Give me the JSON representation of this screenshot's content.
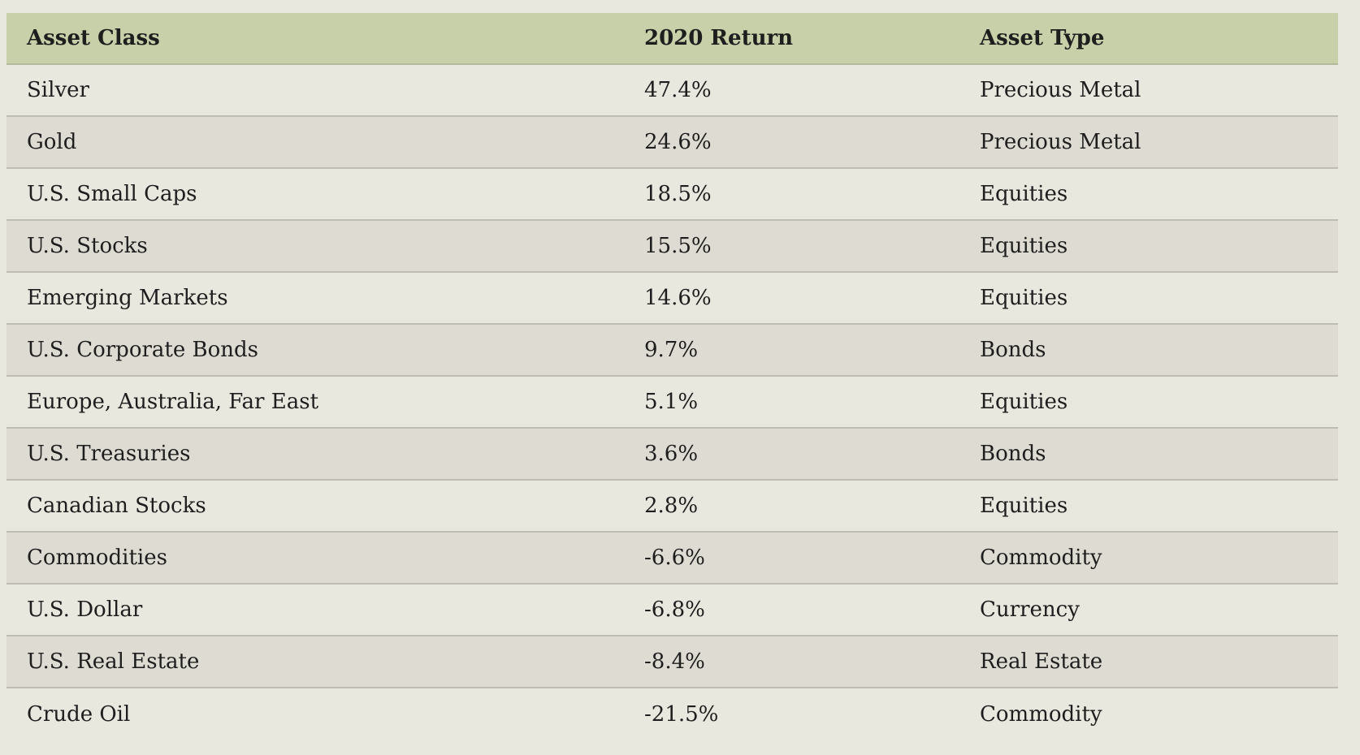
{
  "table": {
    "header": [
      "Asset Class",
      "2020 Return",
      "Asset Type"
    ],
    "rows": [
      [
        "Silver",
        "47.4%",
        "Precious Metal"
      ],
      [
        "Gold",
        "24.6%",
        "Precious Metal"
      ],
      [
        "U.S. Small Caps",
        "18.5%",
        "Equities"
      ],
      [
        "U.S. Stocks",
        "15.5%",
        "Equities"
      ],
      [
        "Emerging Markets",
        "14.6%",
        "Equities"
      ],
      [
        "U.S. Corporate Bonds",
        "9.7%",
        "Bonds"
      ],
      [
        "Europe, Australia, Far East",
        "5.1%",
        "Equities"
      ],
      [
        "U.S. Treasuries",
        "3.6%",
        "Bonds"
      ],
      [
        "Canadian Stocks",
        "2.8%",
        "Equities"
      ],
      [
        "Commodities",
        "-6.6%",
        "Commodity"
      ],
      [
        "U.S. Dollar",
        "-6.8%",
        "Currency"
      ],
      [
        "U.S. Real Estate",
        "-8.4%",
        "Real Estate"
      ],
      [
        "Crude Oil",
        "-21.5%",
        "Commodity"
      ]
    ]
  }
}
